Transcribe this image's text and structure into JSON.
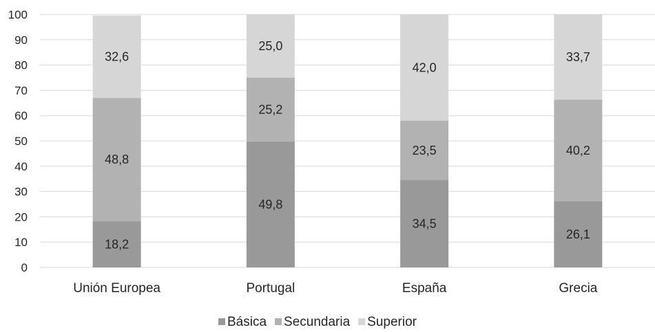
{
  "chart_data": {
    "type": "bar",
    "stacked": true,
    "categories": [
      "Unión Europea",
      "Portugal",
      "España",
      "Grecia"
    ],
    "series": [
      {
        "name": "Básica",
        "values": [
          18.2,
          49.8,
          34.5,
          26.1
        ],
        "labels": [
          "18,2",
          "49,8",
          "34,5",
          "26,1"
        ],
        "color": "#999999"
      },
      {
        "name": "Secundaria",
        "values": [
          48.8,
          25.2,
          23.5,
          40.2
        ],
        "labels": [
          "48,8",
          "25,2",
          "23,5",
          "40,2"
        ],
        "color": "#b2b2b2"
      },
      {
        "name": "Superior",
        "values": [
          32.6,
          25.0,
          42.0,
          33.7
        ],
        "labels": [
          "32,6",
          "25,0",
          "42,0",
          "33,7"
        ],
        "color": "#d6d6d6"
      }
    ],
    "ylim": [
      0,
      100
    ],
    "yticks": [
      0,
      10,
      20,
      30,
      40,
      50,
      60,
      70,
      80,
      90,
      100
    ],
    "grid": true,
    "legend": "bottom",
    "title": "",
    "xlabel": "",
    "ylabel": ""
  }
}
